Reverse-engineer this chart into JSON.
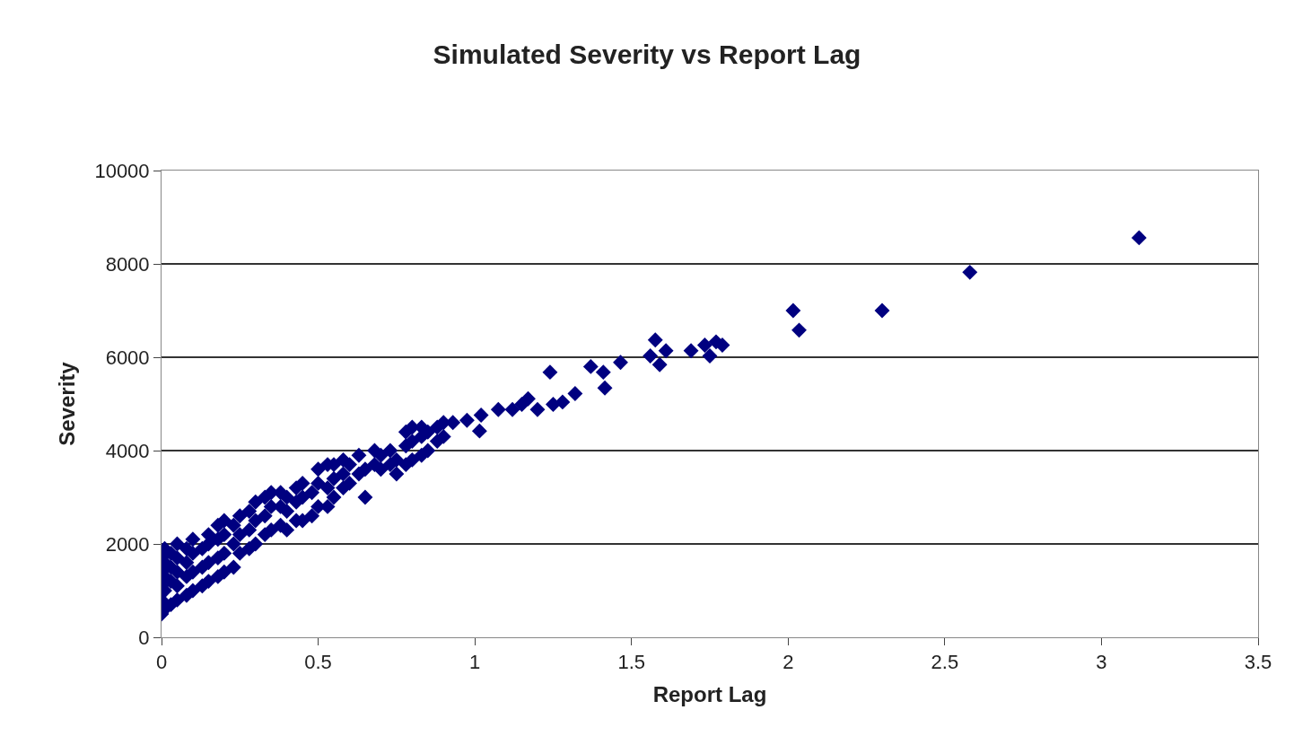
{
  "chart_data": {
    "type": "scatter",
    "title": "Simulated Severity vs Report Lag",
    "xlabel": "Report Lag",
    "ylabel": "Severity",
    "x": [
      0,
      0,
      0,
      0,
      0,
      0.01,
      0.01,
      0.01,
      0.01,
      0.01,
      0.03,
      0.03,
      0.03,
      0.03,
      0.05,
      0.05,
      0.05,
      0.05,
      0.05,
      0.08,
      0.08,
      0.08,
      0.08,
      0.1,
      0.1,
      0.1,
      0.1,
      0.13,
      0.13,
      0.13,
      0.15,
      0.15,
      0.15,
      0.15,
      0.18,
      0.18,
      0.18,
      0.18,
      0.2,
      0.2,
      0.2,
      0.2,
      0.23,
      0.23,
      0.23,
      0.25,
      0.25,
      0.25,
      0.28,
      0.28,
      0.28,
      0.3,
      0.3,
      0.3,
      0.33,
      0.33,
      0.33,
      0.35,
      0.35,
      0.35,
      0.38,
      0.38,
      0.38,
      0.4,
      0.4,
      0.4,
      0.43,
      0.43,
      0.43,
      0.45,
      0.45,
      0.45,
      0.48,
      0.48,
      0.5,
      0.5,
      0.5,
      0.53,
      0.53,
      0.53,
      0.55,
      0.55,
      0.55,
      0.58,
      0.58,
      0.58,
      0.6,
      0.6,
      0.63,
      0.63,
      0.65,
      0.65,
      0.68,
      0.68,
      0.7,
      0.7,
      0.73,
      0.73,
      0.75,
      0.75,
      0.78,
      0.78,
      0.78,
      0.8,
      0.8,
      0.8,
      0.83,
      0.83,
      0.83,
      0.85,
      0.85,
      0.88,
      0.88,
      0.9,
      0.9,
      0.93,
      0.975,
      1.015,
      1.02,
      1.075,
      1.12,
      1.15,
      1.17,
      1.2,
      1.24,
      1.25,
      1.28,
      1.32,
      1.37,
      1.41,
      1.415,
      1.465,
      1.56,
      1.576,
      1.59,
      1.61,
      1.69,
      1.734,
      1.75,
      1.77,
      1.79,
      2.016,
      2.035,
      2.3,
      2.58,
      3.12
    ],
    "values": [
      500,
      800,
      1100,
      1400,
      1700,
      600,
      1000,
      1300,
      1600,
      1900,
      700,
      1200,
      1500,
      1800,
      800,
      1100,
      1400,
      1700,
      2000,
      900,
      1300,
      1600,
      1900,
      1000,
      1400,
      1800,
      2100,
      1100,
      1500,
      1900,
      1200,
      1600,
      2000,
      2200,
      1300,
      1700,
      2100,
      2400,
      1400,
      1800,
      2200,
      2500,
      1500,
      2000,
      2400,
      1800,
      2200,
      2600,
      1900,
      2300,
      2700,
      2000,
      2500,
      2900,
      2200,
      2600,
      3000,
      2300,
      2800,
      3100,
      2400,
      2800,
      3100,
      2300,
      2700,
      3000,
      2500,
      2900,
      3200,
      2500,
      3000,
      3300,
      2600,
      3100,
      2800,
      3300,
      3600,
      2800,
      3200,
      3700,
      3000,
      3400,
      3700,
      3200,
      3500,
      3800,
      3300,
      3700,
      3500,
      3900,
      3000,
      3600,
      3700,
      4000,
      3600,
      3900,
      3700,
      4000,
      3500,
      3800,
      3700,
      4100,
      4400,
      3800,
      4200,
      4500,
      3900,
      4300,
      4500,
      4000,
      4400,
      4200,
      4500,
      4300,
      4600,
      4600,
      4650,
      4420,
      4760,
      4880,
      4880,
      4990,
      5110,
      4880,
      5680,
      4990,
      5040,
      5220,
      5800,
      5680,
      5340,
      5890,
      6030,
      6370,
      5840,
      6140,
      6140,
      6260,
      6030,
      6330,
      6260,
      7000,
      6580,
      7000,
      7820,
      8560
    ],
    "color": "#000080",
    "marker": "diamond",
    "xlim": [
      0,
      3.5
    ],
    "xticks": [
      0,
      0.5,
      1,
      1.5,
      2,
      2.5,
      3,
      3.5
    ],
    "ylim": [
      0,
      10000
    ],
    "yticks": [
      0,
      2000,
      4000,
      6000,
      8000,
      10000
    ],
    "grid": "y",
    "legend": false
  }
}
